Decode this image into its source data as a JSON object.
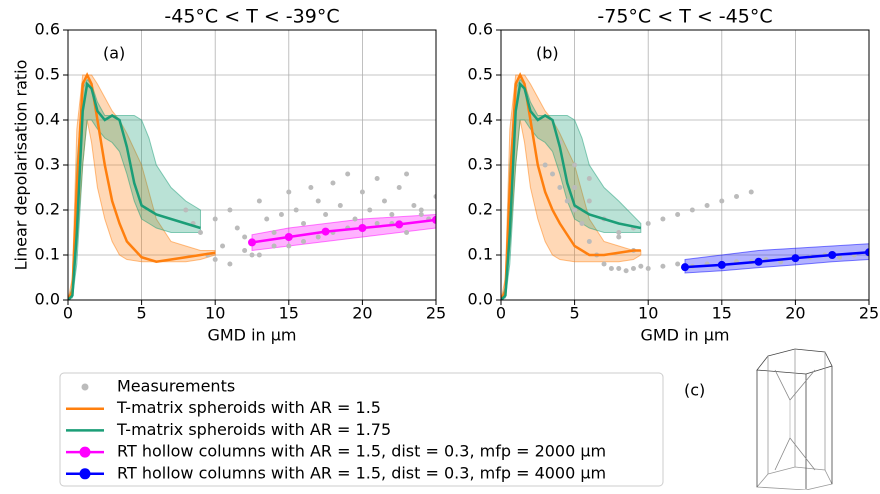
{
  "chart_data": [
    {
      "type": "line",
      "title": "-45°C < T < -39°C",
      "label": "(a)",
      "xlabel": "GMD in µm",
      "ylabel": "Linear depolarisation ratio",
      "xlim": [
        0,
        25
      ],
      "ylim": [
        0,
        0.6
      ],
      "xticks": [
        0,
        5,
        10,
        15,
        20,
        25
      ],
      "yticks": [
        {
          "value": 0,
          "label": "0.0"
        },
        {
          "value": 0.1,
          "label": "0.1"
        },
        {
          "value": 0.2,
          "label": "0.2"
        },
        {
          "value": 0.3,
          "label": "0.3"
        },
        {
          "value": 0.4,
          "label": "0.4"
        },
        {
          "value": 0.5,
          "label": "0.5"
        },
        {
          "value": 0.6,
          "label": "0.6"
        }
      ],
      "grid": true,
      "series": [
        {
          "name": "Measurements",
          "type": "scatter",
          "color": "#bbbbbb",
          "x": [
            8,
            8.5,
            9,
            9.5,
            10,
            10.5,
            11,
            11.5,
            12,
            12.5,
            13,
            13.5,
            14,
            14.5,
            15,
            15.5,
            16,
            16.5,
            17,
            17.5,
            18,
            18.5,
            19,
            19.5,
            20,
            20.5,
            21,
            21.5,
            22,
            22.5,
            23,
            23.5,
            24,
            24.5,
            25,
            10,
            12,
            14,
            16,
            18,
            20,
            22,
            24,
            11,
            13,
            15,
            17,
            19,
            21,
            23
          ],
          "values": [
            0.2,
            0.17,
            0.15,
            0.1,
            0.09,
            0.12,
            0.2,
            0.16,
            0.14,
            0.1,
            0.22,
            0.18,
            0.15,
            0.19,
            0.24,
            0.2,
            0.17,
            0.25,
            0.22,
            0.19,
            0.26,
            0.21,
            0.28,
            0.18,
            0.24,
            0.2,
            0.27,
            0.22,
            0.19,
            0.25,
            0.28,
            0.21,
            0.2,
            0.18,
            0.23,
            0.18,
            0.11,
            0.12,
            0.13,
            0.15,
            0.16,
            0.17,
            0.19,
            0.08,
            0.1,
            0.12,
            0.14,
            0.16,
            0.17,
            0.15
          ]
        },
        {
          "name": "T-matrix spheroids with AR = 1.5",
          "type": "line",
          "color": "#ff7f0e",
          "x": [
            0,
            0.3,
            0.6,
            1,
            1.3,
            1.6,
            2,
            2.5,
            3,
            3.5,
            4,
            5,
            6,
            7,
            8,
            9,
            10
          ],
          "values": [
            0,
            0.02,
            0.25,
            0.48,
            0.5,
            0.48,
            0.4,
            0.3,
            0.22,
            0.17,
            0.13,
            0.095,
            0.085,
            0.09,
            0.095,
            0.1,
            0.105
          ],
          "upper": [
            0,
            0.05,
            0.38,
            0.5,
            0.5,
            0.5,
            0.48,
            0.45,
            0.42,
            0.4,
            0.37,
            0.3,
            0.18,
            0.13,
            0.12,
            0.11,
            0.11
          ],
          "lower": [
            0,
            0.01,
            0.12,
            0.3,
            0.4,
            0.35,
            0.25,
            0.18,
            0.13,
            0.1,
            0.09,
            0.085,
            0.085,
            0.085,
            0.085,
            0.09,
            0.1
          ]
        },
        {
          "name": "T-matrix spheroids with AR = 1.75",
          "type": "line",
          "color": "#1b9e77",
          "x": [
            0,
            0.3,
            0.6,
            1,
            1.3,
            1.6,
            2,
            2.5,
            3,
            3.5,
            4,
            4.5,
            5,
            5.5,
            6,
            7,
            8,
            9
          ],
          "values": [
            0,
            0.01,
            0.15,
            0.42,
            0.48,
            0.47,
            0.42,
            0.4,
            0.41,
            0.4,
            0.34,
            0.26,
            0.21,
            0.2,
            0.19,
            0.18,
            0.17,
            0.16
          ],
          "upper": [
            0,
            0.03,
            0.3,
            0.47,
            0.49,
            0.48,
            0.44,
            0.41,
            0.41,
            0.41,
            0.41,
            0.41,
            0.4,
            0.36,
            0.3,
            0.25,
            0.22,
            0.2
          ],
          "lower": [
            0,
            0.005,
            0.08,
            0.3,
            0.4,
            0.4,
            0.38,
            0.36,
            0.35,
            0.33,
            0.28,
            0.22,
            0.18,
            0.17,
            0.16,
            0.15,
            0.15,
            0.15
          ]
        },
        {
          "name": "RT hollow columns with AR = 1.5, dist = 0.3, mfp = 2000 µm",
          "type": "line",
          "markers": true,
          "color": "#ff00ff",
          "x": [
            12.5,
            15,
            17.5,
            20,
            22.5,
            25
          ],
          "values": [
            0.128,
            0.14,
            0.152,
            0.16,
            0.168,
            0.178
          ],
          "upper": [
            0.145,
            0.16,
            0.17,
            0.18,
            0.185,
            0.19
          ],
          "lower": [
            0.11,
            0.12,
            0.13,
            0.14,
            0.15,
            0.16
          ]
        }
      ]
    },
    {
      "type": "line",
      "title": "-75°C < T < -45°C",
      "label": "(b)",
      "xlabel": "GMD in µm",
      "xlim": [
        0,
        25
      ],
      "ylim": [
        0,
        0.6
      ],
      "xticks": [
        0,
        5,
        10,
        15,
        20,
        25
      ],
      "yticks": [
        {
          "value": 0,
          "label": "0.0"
        },
        {
          "value": 0.1,
          "label": "0.1"
        },
        {
          "value": 0.2,
          "label": "0.2"
        },
        {
          "value": 0.3,
          "label": "0.3"
        },
        {
          "value": 0.4,
          "label": "0.4"
        },
        {
          "value": 0.5,
          "label": "0.5"
        },
        {
          "value": 0.6,
          "label": "0.6"
        }
      ],
      "grid": true,
      "series": [
        {
          "type": "scatter",
          "color": "#bbbbbb",
          "x": [
            3,
            3.5,
            4,
            4.5,
            5,
            5.5,
            6,
            6.5,
            7,
            7.5,
            8,
            8.5,
            9,
            9.5,
            10,
            11,
            12,
            13,
            14,
            15,
            16,
            17,
            18,
            19,
            20,
            21,
            22,
            23,
            24,
            25,
            8,
            9,
            10,
            11,
            12,
            13,
            14,
            15,
            16,
            17,
            5,
            6,
            7,
            8,
            9,
            4,
            5,
            6
          ],
          "values": [
            0.3,
            0.28,
            0.25,
            0.22,
            0.2,
            0.17,
            0.13,
            0.1,
            0.08,
            0.07,
            0.07,
            0.065,
            0.07,
            0.075,
            0.07,
            0.075,
            0.08,
            0.075,
            0.08,
            0.08,
            0.085,
            0.085,
            0.09,
            0.085,
            0.09,
            0.095,
            0.1,
            0.095,
            0.1,
            0.1,
            0.15,
            0.16,
            0.17,
            0.18,
            0.19,
            0.2,
            0.21,
            0.22,
            0.23,
            0.24,
            0.25,
            0.22,
            0.18,
            0.14,
            0.11,
            0.35,
            0.3,
            0.27
          ]
        },
        {
          "type": "line",
          "color": "#ff7f0e",
          "x": [
            0,
            0.3,
            0.6,
            1,
            1.3,
            1.6,
            2,
            2.5,
            3,
            3.5,
            4,
            5,
            6,
            7,
            8,
            9,
            9.5
          ],
          "values": [
            0,
            0.02,
            0.25,
            0.48,
            0.5,
            0.48,
            0.4,
            0.3,
            0.24,
            0.2,
            0.17,
            0.12,
            0.1,
            0.1,
            0.105,
            0.11,
            0.11
          ],
          "upper": [
            0,
            0.05,
            0.38,
            0.5,
            0.5,
            0.5,
            0.48,
            0.45,
            0.42,
            0.4,
            0.37,
            0.3,
            0.18,
            0.13,
            0.12,
            0.11,
            0.11
          ],
          "lower": [
            0,
            0.01,
            0.12,
            0.3,
            0.4,
            0.35,
            0.25,
            0.18,
            0.13,
            0.1,
            0.09,
            0.085,
            0.085,
            0.085,
            0.085,
            0.09,
            0.1
          ]
        },
        {
          "type": "line",
          "color": "#1b9e77",
          "x": [
            0,
            0.3,
            0.6,
            1,
            1.3,
            1.6,
            2,
            2.5,
            3,
            3.5,
            4,
            4.5,
            5,
            5.5,
            6,
            7,
            8,
            9.5
          ],
          "values": [
            0,
            0.01,
            0.15,
            0.42,
            0.48,
            0.47,
            0.42,
            0.4,
            0.41,
            0.4,
            0.34,
            0.26,
            0.21,
            0.2,
            0.19,
            0.18,
            0.17,
            0.16
          ],
          "upper": [
            0,
            0.03,
            0.3,
            0.47,
            0.49,
            0.48,
            0.44,
            0.41,
            0.41,
            0.41,
            0.41,
            0.41,
            0.4,
            0.36,
            0.3,
            0.25,
            0.22,
            0.17
          ],
          "lower": [
            0,
            0.005,
            0.08,
            0.3,
            0.4,
            0.4,
            0.38,
            0.36,
            0.35,
            0.33,
            0.28,
            0.22,
            0.18,
            0.17,
            0.16,
            0.15,
            0.15,
            0.15
          ]
        },
        {
          "name": "RT hollow columns with AR = 1.5, dist = 0.3, mfp = 4000 µm",
          "type": "line",
          "markers": true,
          "color": "#0000ff",
          "x": [
            12.5,
            15,
            17.5,
            20,
            22.5,
            25
          ],
          "values": [
            0.073,
            0.078,
            0.085,
            0.093,
            0.1,
            0.106
          ],
          "upper": [
            0.09,
            0.1,
            0.11,
            0.115,
            0.12,
            0.125
          ],
          "lower": [
            0.06,
            0.065,
            0.072,
            0.078,
            0.085,
            0.09
          ]
        }
      ]
    }
  ],
  "annotation": "(c)"
}
